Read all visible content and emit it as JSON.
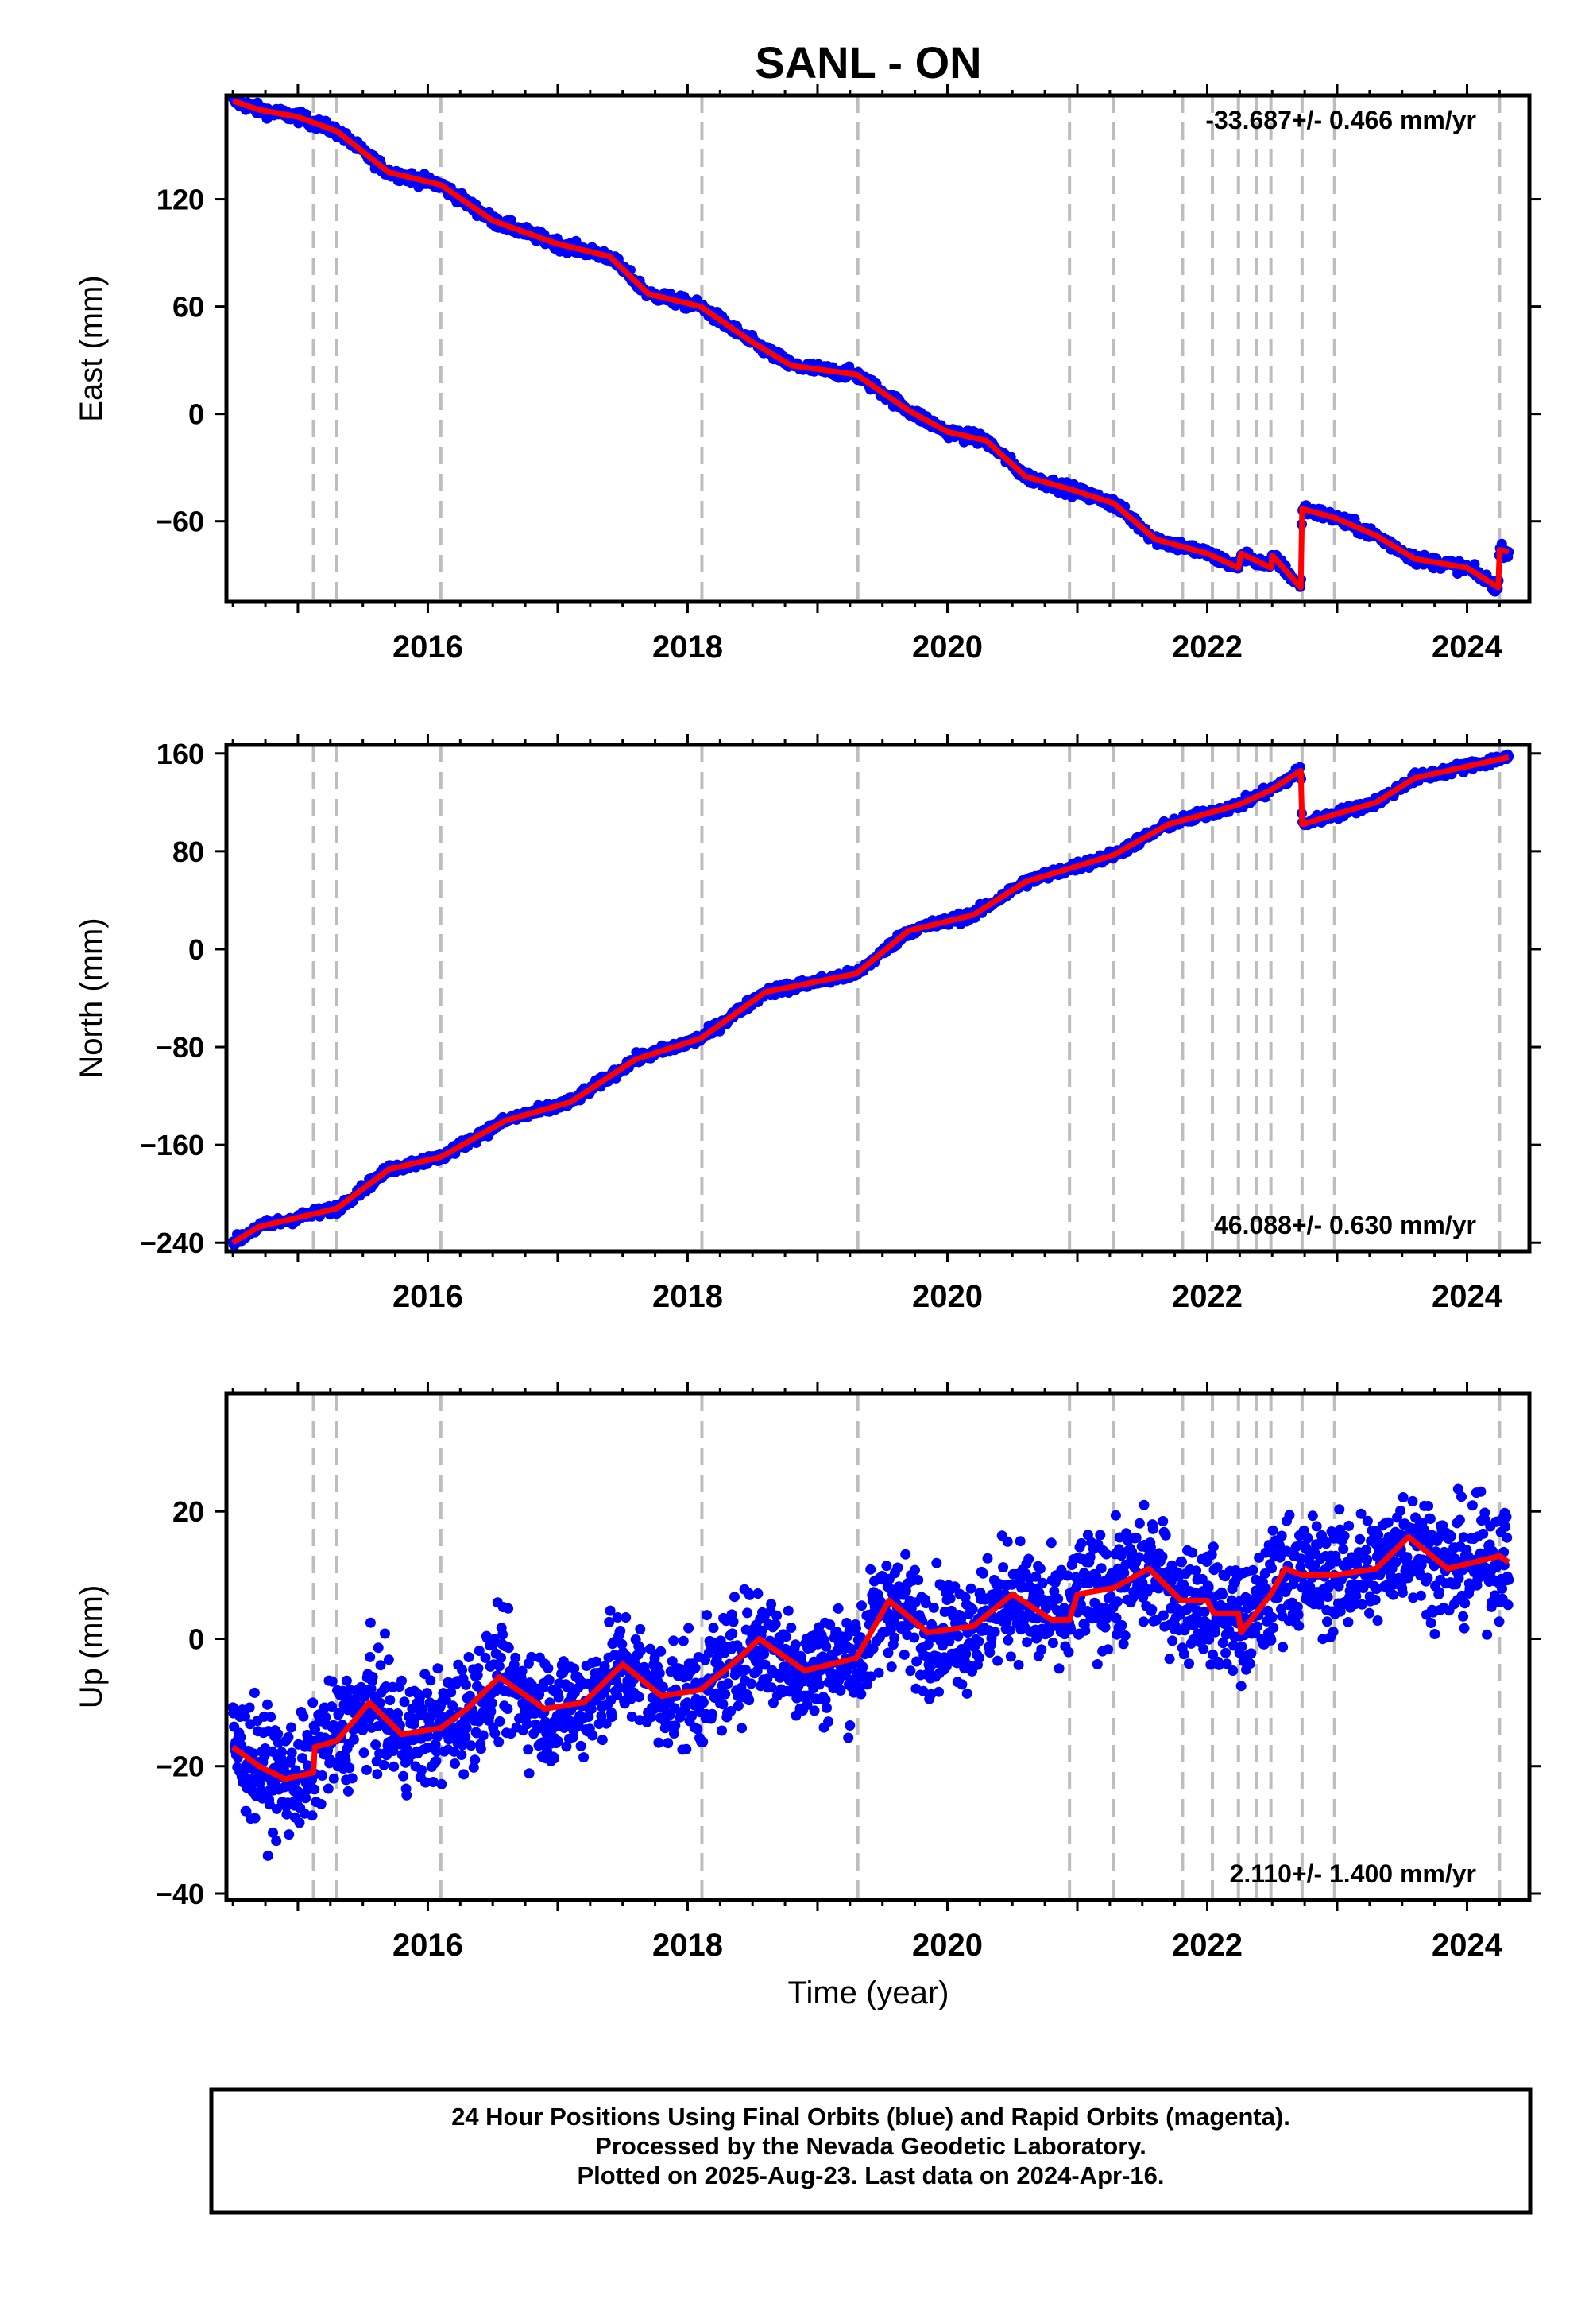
{
  "chart_data": {
    "type": "scatter",
    "title": "SANL - ON",
    "xlabel": "Time (year)",
    "xlim": [
      2014.45,
      2024.48
    ],
    "x_ticks": [
      2016,
      2018,
      2020,
      2022,
      2024
    ],
    "x_tick_labels": [
      "2016",
      "2018",
      "2020",
      "2022",
      "2024"
    ],
    "grid": false,
    "equipment_change_epochs": [
      2015.12,
      2015.3,
      2016.1,
      2018.11,
      2019.31,
      2020.94,
      2021.28,
      2021.81,
      2022.04,
      2022.24,
      2022.38,
      2022.49,
      2022.73,
      2022.98,
      2024.25
    ],
    "colors": {
      "observed": "#0000ff",
      "model": "#ff0000",
      "steps": "#bdbdbd"
    },
    "panels": [
      {
        "component": "East",
        "ylabel": "East (mm)",
        "ylim": [
          -105,
          178
        ],
        "y_ticks": [
          -60,
          0,
          60,
          120
        ],
        "y_tick_labels": [
          "−60",
          "0",
          "60",
          "120"
        ],
        "rate_text": "-33.687+/- 0.466 mm/yr",
        "rate_position": "top-right",
        "noise": 1.6,
        "model_nodes": [
          [
            2014.5,
            175
          ],
          [
            2014.7,
            170
          ],
          [
            2015.0,
            166
          ],
          [
            2015.3,
            158
          ],
          [
            2015.7,
            135
          ],
          [
            2016.1,
            128
          ],
          [
            2016.5,
            108
          ],
          [
            2017.0,
            95
          ],
          [
            2017.4,
            88
          ],
          [
            2017.7,
            67
          ],
          [
            2018.1,
            60
          ],
          [
            2018.5,
            40
          ],
          [
            2018.8,
            27
          ],
          [
            2019.3,
            22
          ],
          [
            2019.7,
            2
          ],
          [
            2020.0,
            -10
          ],
          [
            2020.3,
            -15
          ],
          [
            2020.6,
            -35
          ],
          [
            2020.94,
            -42
          ],
          [
            2021.28,
            -50
          ],
          [
            2021.6,
            -70
          ],
          [
            2022.0,
            -78
          ],
          [
            2022.24,
            -86
          ],
          [
            2022.26,
            -78
          ],
          [
            2022.49,
            -86
          ],
          [
            2022.5,
            -79
          ],
          [
            2022.72,
            -97
          ],
          [
            2022.73,
            -53
          ],
          [
            2022.98,
            -58
          ],
          [
            2023.3,
            -68
          ],
          [
            2023.6,
            -81
          ],
          [
            2024.0,
            -86
          ],
          [
            2024.24,
            -97
          ],
          [
            2024.25,
            -76
          ],
          [
            2024.32,
            -77
          ]
        ]
      },
      {
        "component": "North",
        "ylabel": "North (mm)",
        "ylim": [
          -247,
          167
        ],
        "y_ticks": [
          -240,
          -160,
          -80,
          0,
          80,
          160
        ],
        "y_tick_labels": [
          "−240",
          "−160",
          "−80",
          "0",
          "80",
          "160"
        ],
        "rate_text": "46.088+/- 0.630 mm/yr",
        "rate_position": "bottom-right",
        "noise": 2.0,
        "model_nodes": [
          [
            2014.5,
            -240
          ],
          [
            2014.7,
            -227
          ],
          [
            2015.3,
            -212
          ],
          [
            2015.7,
            -180
          ],
          [
            2016.1,
            -170
          ],
          [
            2016.6,
            -140
          ],
          [
            2017.1,
            -125
          ],
          [
            2017.6,
            -90
          ],
          [
            2018.1,
            -73
          ],
          [
            2018.6,
            -35
          ],
          [
            2019.3,
            -20
          ],
          [
            2019.7,
            15
          ],
          [
            2020.2,
            28
          ],
          [
            2020.6,
            55
          ],
          [
            2021.28,
            77
          ],
          [
            2021.7,
            102
          ],
          [
            2022.24,
            118
          ],
          [
            2022.49,
            130
          ],
          [
            2022.72,
            146
          ],
          [
            2022.73,
            102
          ],
          [
            2022.98,
            110
          ],
          [
            2023.3,
            120
          ],
          [
            2023.6,
            140
          ],
          [
            2024.32,
            157
          ]
        ]
      },
      {
        "component": "Up",
        "ylabel": "Up (mm)",
        "ylim": [
          -41,
          38.5
        ],
        "y_ticks": [
          -40,
          -20,
          0,
          20
        ],
        "y_tick_labels": [
          "−40",
          "−20",
          "0",
          "20"
        ],
        "rate_text": "2.110+/- 1.400 mm/yr",
        "rate_position": "bottom-right",
        "noise": 4.5,
        "model_nodes": [
          [
            2014.5,
            -17
          ],
          [
            2014.7,
            -20
          ],
          [
            2014.9,
            -22
          ],
          [
            2015.12,
            -21
          ],
          [
            2015.13,
            -17
          ],
          [
            2015.3,
            -16
          ],
          [
            2015.55,
            -10
          ],
          [
            2015.8,
            -15
          ],
          [
            2016.1,
            -14
          ],
          [
            2016.3,
            -11
          ],
          [
            2016.55,
            -6
          ],
          [
            2016.9,
            -11
          ],
          [
            2017.2,
            -10
          ],
          [
            2017.5,
            -4
          ],
          [
            2017.8,
            -9
          ],
          [
            2018.1,
            -8
          ],
          [
            2018.4,
            -3
          ],
          [
            2018.55,
            0
          ],
          [
            2018.9,
            -5
          ],
          [
            2019.3,
            -3
          ],
          [
            2019.55,
            6
          ],
          [
            2019.85,
            1
          ],
          [
            2020.2,
            2
          ],
          [
            2020.5,
            7
          ],
          [
            2020.8,
            3
          ],
          [
            2020.94,
            3
          ],
          [
            2021.0,
            7
          ],
          [
            2021.28,
            8
          ],
          [
            2021.55,
            11
          ],
          [
            2021.8,
            6
          ],
          [
            2022.0,
            6
          ],
          [
            2022.05,
            4
          ],
          [
            2022.24,
            4
          ],
          [
            2022.26,
            1
          ],
          [
            2022.49,
            7
          ],
          [
            2022.6,
            11
          ],
          [
            2022.73,
            10
          ],
          [
            2022.98,
            10
          ],
          [
            2023.3,
            11
          ],
          [
            2023.55,
            16
          ],
          [
            2023.85,
            11
          ],
          [
            2024.25,
            13
          ],
          [
            2024.32,
            12
          ]
        ]
      }
    ]
  },
  "footer": {
    "lines": [
      "24 Hour Positions Using Final Orbits (blue) and Rapid Orbits (magenta).",
      "Processed by the Nevada Geodetic Laboratory.",
      "Plotted on 2025-Aug-23. Last data on 2024-Apr-16."
    ]
  }
}
